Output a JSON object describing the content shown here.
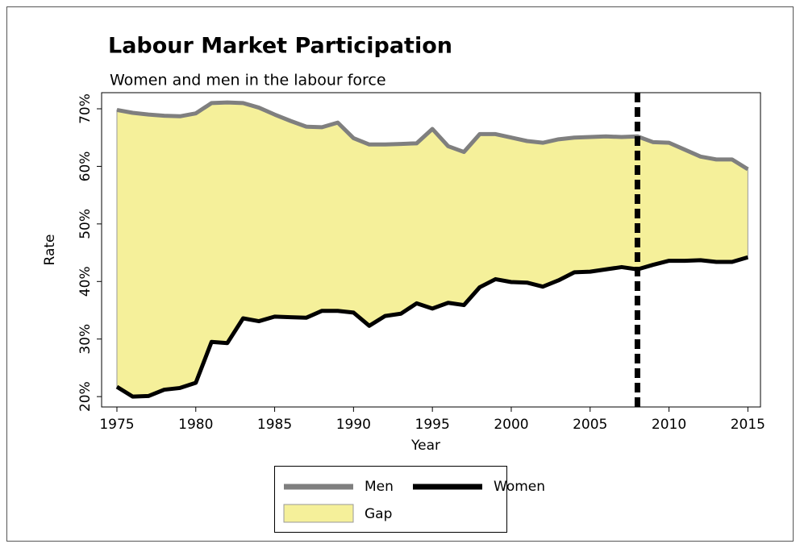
{
  "chart_data": {
    "type": "line",
    "title": "Labour Market Participation",
    "subtitle": "Women and men in the labour force",
    "x_label": "Year",
    "y_label": "Rate",
    "x": [
      1975,
      1976,
      1977,
      1978,
      1979,
      1980,
      1981,
      1982,
      1983,
      1984,
      1985,
      1986,
      1987,
      1988,
      1989,
      1990,
      1991,
      1992,
      1993,
      1994,
      1995,
      1996,
      1997,
      1998,
      1999,
      2000,
      2001,
      2002,
      2003,
      2004,
      2005,
      2006,
      2007,
      2008,
      2009,
      2010,
      2011,
      2012,
      2013,
      2014,
      2015
    ],
    "series": [
      {
        "name": "Men",
        "color": "#7f7f7f",
        "values": [
          69.8,
          69.3,
          69.0,
          68.8,
          68.7,
          69.2,
          71.0,
          71.1,
          71.0,
          70.2,
          69.0,
          67.9,
          66.9,
          66.8,
          67.6,
          64.9,
          63.8,
          63.8,
          63.9,
          64.0,
          66.5,
          63.5,
          62.5,
          65.6,
          65.6,
          65.0,
          64.4,
          64.1,
          64.7,
          65.0,
          65.1,
          65.2,
          65.1,
          65.2,
          64.2,
          64.1,
          62.9,
          61.7,
          61.2,
          61.2,
          59.5
        ]
      },
      {
        "name": "Women",
        "color": "#000000",
        "values": [
          21.7,
          20.0,
          20.1,
          21.2,
          21.5,
          22.4,
          29.5,
          29.3,
          33.6,
          33.1,
          33.9,
          33.8,
          33.7,
          34.9,
          34.9,
          34.6,
          32.3,
          34.0,
          34.4,
          36.2,
          35.3,
          36.3,
          35.9,
          39.0,
          40.4,
          39.9,
          39.8,
          39.1,
          40.2,
          41.6,
          41.7,
          42.1,
          42.5,
          42.1,
          42.9,
          43.6,
          43.6,
          43.7,
          43.4,
          43.4,
          44.2
        ]
      }
    ],
    "gap": {
      "name": "Gap",
      "color": "#f5f09a"
    },
    "vline": 2008,
    "xlim": [
      1974.03,
      2015.8
    ],
    "xticks": [
      1975,
      1980,
      1985,
      1990,
      1995,
      2000,
      2005,
      2010,
      2015
    ],
    "ylim": [
      18.2,
      72.8
    ],
    "yticks": [
      {
        "value": 20,
        "label": "20%"
      },
      {
        "value": 30,
        "label": "30%"
      },
      {
        "value": 40,
        "label": "40%"
      },
      {
        "value": 50,
        "label": "50%"
      },
      {
        "value": 60,
        "label": "60%"
      },
      {
        "value": 70,
        "label": "70%"
      }
    ]
  }
}
